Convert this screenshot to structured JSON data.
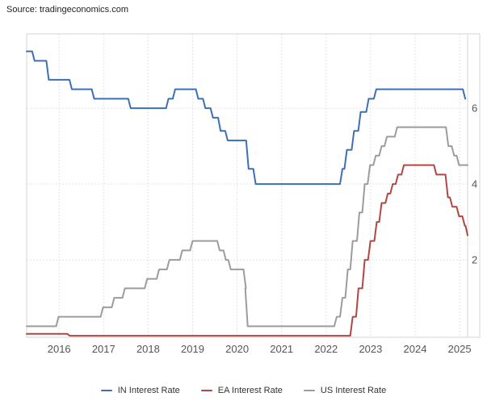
{
  "source_label": "Source: tradingeconomics.com",
  "colors": {
    "in_line": "#3D6FB6",
    "ea_line": "#B14743",
    "us_line": "#9C9C9C",
    "grid": "#E3E3E3",
    "plot_border": "#D6D6D6",
    "tick_text": "#555555",
    "legend_text": "#333333",
    "source_text": "#222222",
    "background": "#FFFFFF"
  },
  "chart_data": {
    "type": "line",
    "title": "",
    "xlabel": "",
    "ylabel": "",
    "grid": true,
    "legend_position": "bottom",
    "x_ticks": [
      2016,
      2017,
      2018,
      2019,
      2020,
      2021,
      2022,
      2023,
      2024,
      2025
    ],
    "y_ticks": [
      2,
      4,
      6
    ],
    "x_range": [
      2015.27,
      2025.18
    ],
    "y_range": [
      -0.04,
      7.96
    ],
    "series": [
      {
        "name": "IN Interest Rate",
        "slug": "in-interest-rate",
        "color": "#3D6FB6",
        "t_end": 2025.13,
        "points": [
          [
            2015.27,
            7.5
          ],
          [
            2015.42,
            7.25
          ],
          [
            2015.74,
            6.75
          ],
          [
            2016.26,
            6.5
          ],
          [
            2016.76,
            6.25
          ],
          [
            2017.58,
            6.0
          ],
          [
            2018.43,
            6.25
          ],
          [
            2018.58,
            6.5
          ],
          [
            2019.1,
            6.25
          ],
          [
            2019.26,
            6.0
          ],
          [
            2019.43,
            5.75
          ],
          [
            2019.6,
            5.4
          ],
          [
            2019.76,
            5.15
          ],
          [
            2020.23,
            4.4
          ],
          [
            2020.39,
            4.0
          ],
          [
            2022.34,
            4.4
          ],
          [
            2022.44,
            4.9
          ],
          [
            2022.6,
            5.4
          ],
          [
            2022.75,
            5.9
          ],
          [
            2022.93,
            6.25
          ],
          [
            2023.1,
            6.5
          ],
          [
            2025.1,
            6.25
          ]
        ]
      },
      {
        "name": "EA Interest Rate",
        "slug": "ea-interest-rate",
        "color": "#B14743",
        "t_end": 2025.18,
        "points": [
          [
            2015.27,
            0.05
          ],
          [
            2016.21,
            0.0
          ],
          [
            2022.57,
            0.5
          ],
          [
            2022.7,
            1.25
          ],
          [
            2022.84,
            2.0
          ],
          [
            2022.97,
            2.5
          ],
          [
            2023.11,
            3.0
          ],
          [
            2023.22,
            3.5
          ],
          [
            2023.36,
            3.75
          ],
          [
            2023.47,
            4.0
          ],
          [
            2023.59,
            4.25
          ],
          [
            2023.72,
            4.5
          ],
          [
            2024.45,
            4.25
          ],
          [
            2024.71,
            3.65
          ],
          [
            2024.81,
            3.4
          ],
          [
            2024.96,
            3.15
          ],
          [
            2025.09,
            2.9
          ],
          [
            2025.16,
            2.65
          ]
        ]
      },
      {
        "name": "US Interest Rate",
        "slug": "us-interest-rate",
        "color": "#9C9C9C",
        "t_end": 2025.18,
        "points": [
          [
            2015.27,
            0.25
          ],
          [
            2015.96,
            0.5
          ],
          [
            2016.96,
            0.75
          ],
          [
            2017.21,
            1.0
          ],
          [
            2017.45,
            1.25
          ],
          [
            2017.95,
            1.5
          ],
          [
            2018.22,
            1.75
          ],
          [
            2018.45,
            2.0
          ],
          [
            2018.74,
            2.25
          ],
          [
            2018.97,
            2.5
          ],
          [
            2019.58,
            2.25
          ],
          [
            2019.72,
            2.0
          ],
          [
            2019.83,
            1.75
          ],
          [
            2020.17,
            1.25
          ],
          [
            2020.21,
            0.25
          ],
          [
            2022.21,
            0.5
          ],
          [
            2022.34,
            1.0
          ],
          [
            2022.46,
            1.75
          ],
          [
            2022.57,
            2.5
          ],
          [
            2022.72,
            3.25
          ],
          [
            2022.84,
            4.0
          ],
          [
            2022.96,
            4.5
          ],
          [
            2023.09,
            4.75
          ],
          [
            2023.22,
            5.0
          ],
          [
            2023.34,
            5.25
          ],
          [
            2023.57,
            5.5
          ],
          [
            2024.72,
            5.0
          ],
          [
            2024.85,
            4.75
          ],
          [
            2024.96,
            4.5
          ]
        ]
      }
    ]
  }
}
